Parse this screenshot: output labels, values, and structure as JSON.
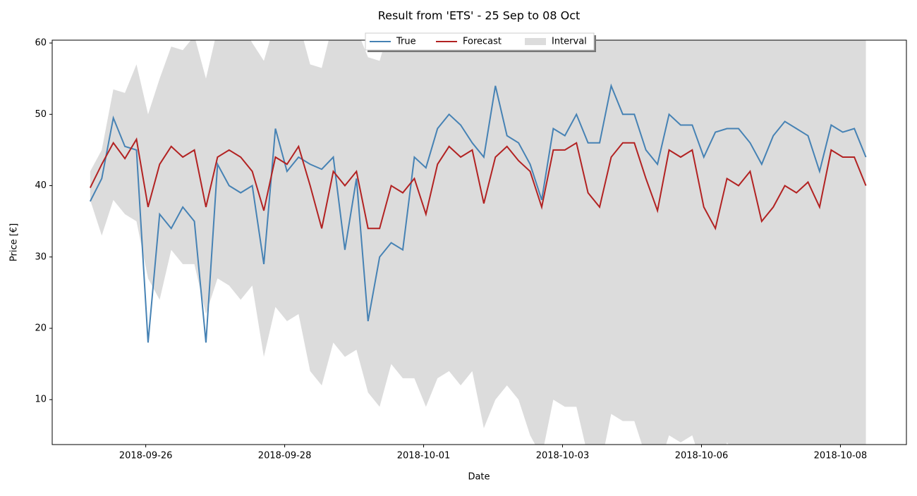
{
  "chart_data": {
    "type": "line",
    "title": "Result from 'ETS' - 25 Sep to 08 Oct",
    "x_label": "Date",
    "y_label": "Price [€]",
    "x": [
      0,
      5,
      10,
      15,
      20,
      25,
      30,
      35,
      40,
      45,
      50,
      55,
      60,
      65,
      70,
      75,
      80,
      85,
      90,
      95,
      100,
      105,
      110,
      115,
      120,
      125,
      130,
      135,
      140,
      145,
      150,
      155,
      160,
      165,
      170,
      175,
      180,
      185,
      190,
      195,
      200,
      205,
      210,
      215,
      220,
      225,
      230,
      235,
      240,
      245,
      250,
      255,
      260,
      265,
      270,
      275,
      280,
      285,
      290,
      295,
      300,
      305,
      310,
      315,
      320,
      325,
      330,
      335
    ],
    "xlim": [
      -16.4,
      352.5
    ],
    "xticks": [
      {
        "value": 24,
        "label": "2018-09-26"
      },
      {
        "value": 84,
        "label": "2018-09-28"
      },
      {
        "value": 144,
        "label": "2018-10-01"
      },
      {
        "value": 204,
        "label": "2018-10-03"
      },
      {
        "value": 264,
        "label": "2018-10-06"
      },
      {
        "value": 324,
        "label": "2018-10-08"
      }
    ],
    "ylim": [
      3.7,
      60.4
    ],
    "yticks": [
      10,
      20,
      30,
      40,
      50,
      60
    ],
    "legend": "upper center",
    "series": [
      {
        "name": "True",
        "color": "#4682b4",
        "values": [
          37.8,
          41,
          49.5,
          45.5,
          45,
          18,
          36,
          34,
          37,
          35,
          18,
          43,
          40,
          39,
          40,
          29,
          48,
          42,
          44,
          43,
          42.3,
          44,
          31,
          41,
          21,
          30,
          32,
          31,
          44,
          42.5,
          48,
          50,
          48.5,
          46,
          44,
          54,
          47,
          46,
          43,
          38,
          48,
          47,
          50,
          46,
          46,
          54,
          50,
          50,
          45,
          43,
          50,
          48.5,
          48.5,
          44,
          47.5,
          48,
          48,
          46,
          43,
          47,
          49,
          48,
          47,
          42,
          48.5,
          47.5,
          48,
          44
        ]
      },
      {
        "name": "Forecast",
        "color": "#b22222",
        "values": [
          39.7,
          43,
          46,
          43.8,
          46.5,
          37,
          43,
          45.5,
          44,
          45,
          37,
          44,
          45,
          44,
          42,
          36.5,
          44,
          43,
          45.5,
          40,
          34,
          42,
          40,
          42,
          34,
          34,
          40,
          39,
          41,
          36,
          43,
          45.5,
          44,
          45,
          37.5,
          44,
          45.5,
          43.5,
          42,
          37,
          45,
          45,
          46,
          39,
          37,
          44,
          46,
          46,
          41,
          36.5,
          45,
          44,
          45,
          37,
          34,
          41,
          40,
          42,
          35,
          37,
          40,
          39,
          40.5,
          37,
          45,
          44,
          44,
          40
        ]
      }
    ],
    "interval": {
      "name": "Interval",
      "color": "#dcdcdc",
      "upper": [
        42,
        45,
        53.5,
        53,
        57,
        50,
        55,
        59.5,
        59,
        61,
        55,
        62,
        63,
        63,
        60,
        57.5,
        63,
        63,
        63,
        57,
        56.5,
        63,
        63,
        62,
        58,
        57.5,
        63,
        64,
        64,
        64,
        64,
        64,
        64,
        64,
        64,
        64,
        64,
        64,
        64,
        64,
        64,
        64,
        64,
        64,
        64,
        64,
        64,
        64,
        64,
        64,
        64,
        64,
        64,
        64,
        64,
        64,
        64,
        64,
        64,
        64,
        64,
        64,
        64,
        64,
        64,
        64,
        64,
        64
      ],
      "lower": [
        38,
        33,
        38,
        36,
        35,
        27,
        24,
        31,
        29,
        29,
        22,
        27,
        26,
        24,
        26,
        16,
        23,
        21,
        22,
        14,
        12,
        18,
        16,
        17,
        11,
        9,
        15,
        13,
        13,
        9,
        13,
        14,
        12,
        14,
        6,
        10,
        12,
        10,
        5,
        2,
        10,
        9,
        9,
        2,
        0,
        8,
        7,
        7,
        2,
        0,
        5,
        4,
        5,
        0,
        -1,
        4,
        2,
        3,
        -2,
        -3,
        0,
        -2,
        -2,
        -5,
        -3,
        -3,
        -4,
        -5
      ]
    }
  }
}
